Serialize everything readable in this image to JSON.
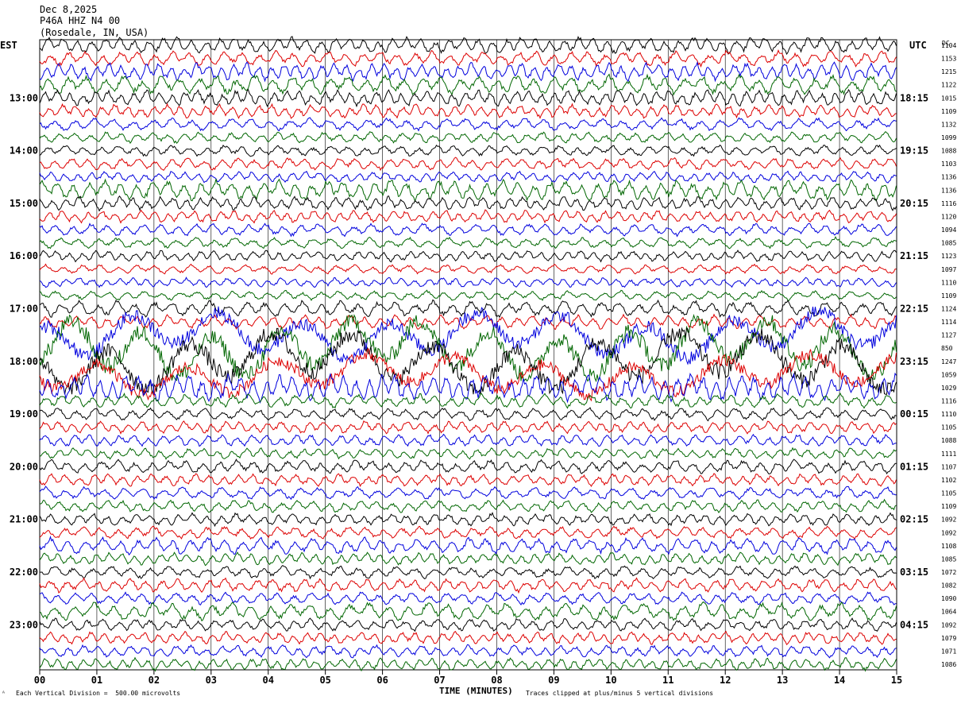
{
  "header": {
    "date": "Dec 8,2025",
    "station": "P46A HHZ N4 00",
    "location": "(Rosedale, IN, USA)"
  },
  "labels": {
    "left_tz": "EST",
    "right_tz": "UTC",
    "dc": "DC",
    "x_title": "TIME (MINUTES)",
    "footer_left": "Each Vertical Division =  500.00 microvolts",
    "footer_right": "Traces clipped at plus/minus 5 vertical divisions",
    "footer_mark": "ᴬ"
  },
  "chart_data": {
    "type": "line",
    "xlabel": "TIME (MINUTES)",
    "x_ticks": [
      "00",
      "01",
      "02",
      "03",
      "04",
      "05",
      "06",
      "07",
      "08",
      "09",
      "10",
      "11",
      "12",
      "13",
      "14",
      "15"
    ],
    "xlim": [
      0,
      15
    ],
    "trace_colors": [
      "#000000",
      "#dd0000",
      "#0000dd",
      "#006600"
    ],
    "left_hour_labels": [
      "13:00",
      "14:00",
      "15:00",
      "16:00",
      "17:00",
      "18:00",
      "19:00",
      "20:00",
      "21:00",
      "22:00",
      "23:00"
    ],
    "right_hour_labels": [
      "18:15",
      "19:15",
      "20:15",
      "21:15",
      "22:15",
      "23:15",
      "00:15",
      "01:15",
      "02:15",
      "03:15",
      "04:15"
    ],
    "dc_offsets": [
      1104,
      1153,
      1215,
      1122,
      1015,
      1109,
      1132,
      1099,
      1088,
      1103,
      1136,
      1136,
      1116,
      1120,
      1094,
      1085,
      1123,
      1097,
      1110,
      1109,
      1124,
      1114,
      1127,
      850,
      1247,
      1059,
      1029,
      1116,
      1110,
      1105,
      1088,
      1111,
      1107,
      1102,
      1105,
      1109,
      1092,
      1092,
      1108,
      1085,
      1072,
      1082,
      1090,
      1064,
      1092,
      1079,
      1071,
      1086
    ],
    "trace_amplitude_divisions": [
      1.2,
      1.1,
      1.3,
      1.4,
      1.2,
      1.0,
      0.9,
      0.8,
      0.8,
      0.9,
      0.8,
      1.5,
      1.0,
      0.9,
      0.9,
      0.8,
      0.8,
      0.7,
      0.7,
      0.7,
      1.2,
      1.0,
      4.0,
      5.0,
      5.0,
      3.5,
      2.0,
      1.0,
      0.9,
      0.9,
      0.9,
      0.8,
      1.0,
      0.9,
      0.9,
      0.9,
      0.9,
      0.9,
      1.2,
      0.9,
      0.9,
      1.0,
      0.9,
      1.3,
      0.9,
      0.9,
      0.9,
      0.9
    ],
    "clip_divisions": 5,
    "microvolts_per_division": 500
  }
}
